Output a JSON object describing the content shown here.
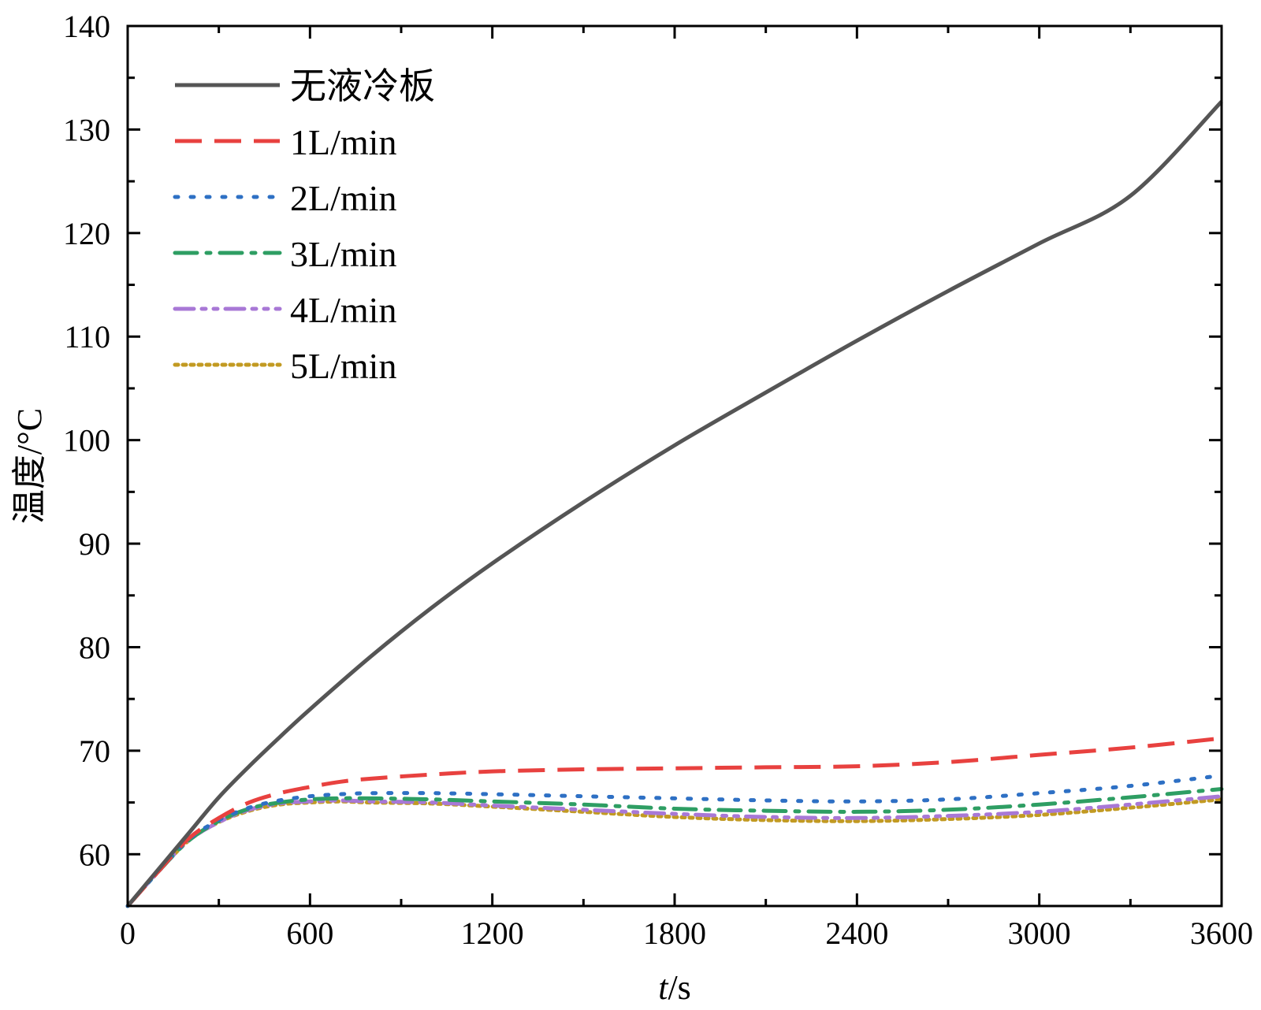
{
  "chart_data": {
    "type": "line",
    "title": "",
    "xlabel": "t/s",
    "xlabel_var": "t",
    "xlabel_unit": "/s",
    "ylabel": "温度/°C",
    "xlim": [
      0,
      3600
    ],
    "ylim": [
      55,
      140
    ],
    "xticks": [
      0,
      600,
      1200,
      1800,
      2400,
      3000,
      3600
    ],
    "yticks": [
      60,
      70,
      80,
      90,
      100,
      110,
      120,
      130,
      140
    ],
    "legend_position": "top-left",
    "series": [
      {
        "name": "无液冷板",
        "color": "#555555",
        "dash": "solid",
        "x": [
          0,
          100,
          200,
          300,
          400,
          500,
          600,
          800,
          1000,
          1200,
          1500,
          1800,
          2100,
          2400,
          2700,
          3000,
          3300,
          3600
        ],
        "y": [
          55,
          58.5,
          62,
          65.5,
          68.5,
          71.3,
          74,
          79.1,
          83.8,
          88.1,
          94,
          99.5,
          104.6,
          109.6,
          114.4,
          119,
          123.6,
          132.7
        ]
      },
      {
        "name": "1L/min",
        "color": "#e8413f",
        "dash": "dash",
        "x": [
          0,
          100,
          200,
          300,
          400,
          500,
          600,
          700,
          800,
          1000,
          1200,
          1500,
          1800,
          2100,
          2400,
          2700,
          3000,
          3300,
          3600
        ],
        "y": [
          55,
          58.3,
          61.5,
          63.5,
          65,
          65.9,
          66.5,
          67,
          67.3,
          67.7,
          68,
          68.2,
          68.3,
          68.4,
          68.5,
          68.9,
          69.6,
          70.3,
          71.2
        ]
      },
      {
        "name": "2L/min",
        "color": "#2e70c4",
        "dash": "dot",
        "x": [
          0,
          100,
          200,
          300,
          400,
          500,
          600,
          700,
          800,
          1000,
          1200,
          1500,
          1800,
          2100,
          2400,
          2700,
          3000,
          3300,
          3600
        ],
        "y": [
          55,
          58.3,
          61.4,
          63.3,
          64.5,
          65.2,
          65.6,
          65.8,
          65.9,
          65.9,
          65.8,
          65.6,
          65.4,
          65.2,
          65.1,
          65.3,
          65.9,
          66.6,
          67.6
        ]
      },
      {
        "name": "3L/min",
        "color": "#2e9e63",
        "dash": "dashdot",
        "x": [
          0,
          100,
          200,
          300,
          400,
          500,
          600,
          700,
          800,
          1000,
          1200,
          1500,
          1800,
          2100,
          2400,
          2700,
          3000,
          3300,
          3600
        ],
        "y": [
          55,
          58.3,
          61.3,
          63.2,
          64.4,
          65,
          65.3,
          65.4,
          65.4,
          65.3,
          65.1,
          64.8,
          64.4,
          64.2,
          64.1,
          64.3,
          64.8,
          65.5,
          66.3
        ]
      },
      {
        "name": "4L/min",
        "color": "#a878d6",
        "dash": "dashdotdot",
        "x": [
          0,
          100,
          200,
          300,
          400,
          500,
          600,
          700,
          800,
          1000,
          1200,
          1500,
          1800,
          2100,
          2400,
          2700,
          3000,
          3300,
          3600
        ],
        "y": [
          55,
          58.3,
          61.3,
          63.1,
          64.3,
          64.9,
          65.1,
          65.2,
          65.1,
          65,
          64.7,
          64.3,
          63.9,
          63.6,
          63.5,
          63.7,
          64.1,
          64.8,
          65.6
        ]
      },
      {
        "name": "5L/min",
        "color": "#c29a22",
        "dash": "shortdot",
        "x": [
          0,
          100,
          200,
          300,
          400,
          500,
          600,
          700,
          800,
          1000,
          1200,
          1500,
          1800,
          2100,
          2400,
          2700,
          3000,
          3300,
          3600
        ],
        "y": [
          55,
          58.3,
          61.3,
          63.1,
          64.2,
          64.8,
          65,
          65.1,
          65,
          64.9,
          64.6,
          64.1,
          63.6,
          63.3,
          63.2,
          63.4,
          63.8,
          64.5,
          65.3
        ]
      }
    ]
  }
}
